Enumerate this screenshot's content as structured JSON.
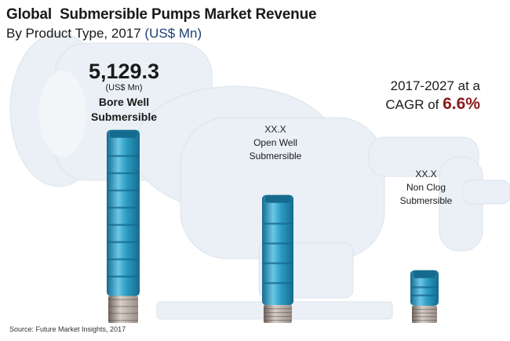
{
  "title": "Global  Submersible Pumps Market Revenue",
  "subtitle": "By Product Type, 2017",
  "subtitle_unit": "(US$ Mn)",
  "cagr": {
    "line1": "2017-2027 at a",
    "prefix": "CAGR of",
    "value": "6.6%"
  },
  "source": "Source: Future Market Insights, 2017",
  "colors": {
    "pump_blue": "#2c9cc4",
    "pump_dark": "#156b8e",
    "steel": "#9a8e86",
    "cagr_red": "#8b1a1a",
    "unit_blue": "#1f3f75"
  },
  "chart_data": {
    "type": "bar",
    "title": "Global  Submersible Pumps Market Revenue",
    "subtitle": "By Product Type, 2017 (US$ Mn)",
    "unit": "(US$ Mn)",
    "categories": [
      "Bore Well Submersible",
      "Open Well Submersible",
      "Non Clog Submersible"
    ],
    "category_lines": [
      [
        "Bore Well",
        "Submersible"
      ],
      [
        "Open Well",
        "Submersible"
      ],
      [
        "Non Clog",
        "Submersible"
      ]
    ],
    "value_labels": [
      "5,129.3",
      "XX.X",
      "XX.X"
    ],
    "values": [
      5129.3,
      3400,
      1400
    ],
    "ylim": [
      0,
      5500
    ],
    "grid": false,
    "legend": "none"
  }
}
